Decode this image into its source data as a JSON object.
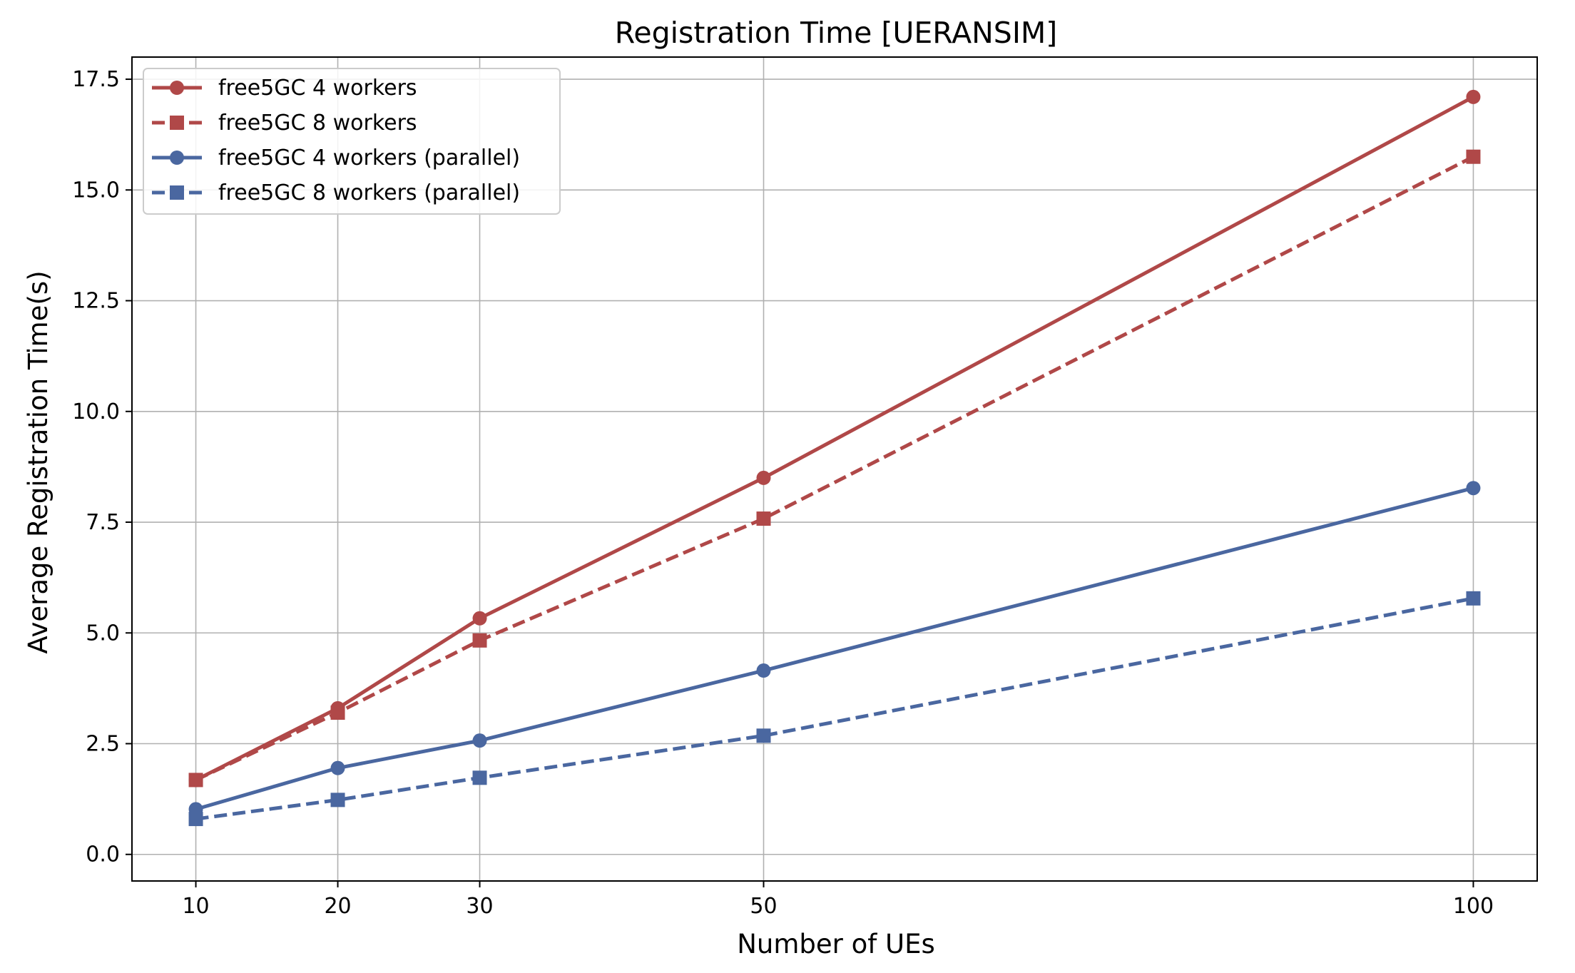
{
  "chart_data": {
    "type": "line",
    "title": "Registration Time [UERANSIM]",
    "xlabel": "Number of UEs",
    "ylabel": "Average Registration Time(s)",
    "x": [
      10,
      20,
      30,
      50,
      100
    ],
    "x_ticks": [
      "10",
      "20",
      "30",
      "50",
      "100"
    ],
    "y_ticks": [
      "0.0",
      "2.5",
      "5.0",
      "7.5",
      "10.0",
      "12.5",
      "15.0",
      "17.5"
    ],
    "xlim": [
      5.5,
      104.5
    ],
    "ylim": [
      -0.6,
      18.0
    ],
    "grid": true,
    "legend_position": "top-left",
    "series": [
      {
        "name": "free5GC 4 workers",
        "values": [
          1.68,
          3.3,
          5.33,
          8.5,
          17.1
        ],
        "color": "#b04848",
        "dash": "solid",
        "marker": "circle"
      },
      {
        "name": "free5GC 8 workers",
        "values": [
          1.68,
          3.2,
          4.83,
          7.58,
          15.75
        ],
        "color": "#b04848",
        "dash": "dashed",
        "marker": "square"
      },
      {
        "name": "free5GC 4 workers (parallel)",
        "values": [
          1.02,
          1.95,
          2.57,
          4.15,
          8.27
        ],
        "color": "#4a67a0",
        "dash": "solid",
        "marker": "circle"
      },
      {
        "name": "free5GC 8 workers (parallel)",
        "values": [
          0.8,
          1.23,
          1.73,
          2.68,
          5.78
        ],
        "color": "#4a67a0",
        "dash": "dashed",
        "marker": "square"
      }
    ]
  }
}
